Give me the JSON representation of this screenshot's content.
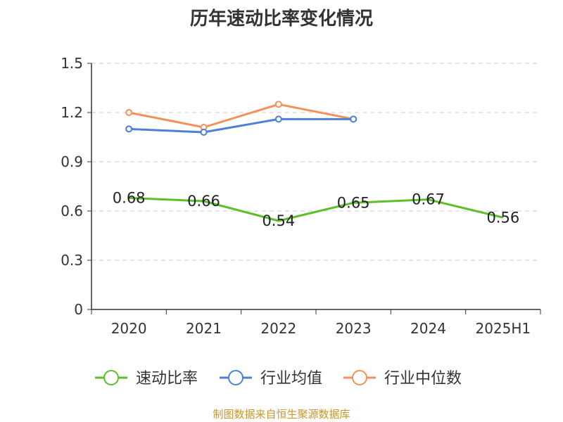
{
  "chart_data": {
    "type": "line",
    "title": "历年速动比率变化情况",
    "categories": [
      "2020",
      "2021",
      "2022",
      "2023",
      "2024",
      "2025H1"
    ],
    "ylim": [
      0,
      1.5
    ],
    "yticks": [
      "0",
      "0.3",
      "0.6",
      "0.9",
      "1.2",
      "1.5"
    ],
    "grid": "horizontal dashed",
    "legend_position": "bottom",
    "series": [
      {
        "name": "速动比率",
        "color": "#5cbf2a",
        "values": [
          0.68,
          0.66,
          0.54,
          0.65,
          0.67,
          0.56
        ],
        "labels": [
          "0.68",
          "0.66",
          "0.54",
          "0.65",
          "0.67",
          "0.56"
        ],
        "show_labels": true,
        "markers": false
      },
      {
        "name": "行业均值",
        "color": "#4e7fdb",
        "values": [
          1.1,
          1.08,
          1.16,
          1.16,
          null,
          null
        ],
        "show_labels": false,
        "markers": true
      },
      {
        "name": "行业中位数",
        "color": "#f5905a",
        "values": [
          1.2,
          1.11,
          1.25,
          1.16,
          null,
          null
        ],
        "show_labels": false,
        "markers": true
      }
    ]
  },
  "source": "制图数据来自恒生聚源数据库"
}
